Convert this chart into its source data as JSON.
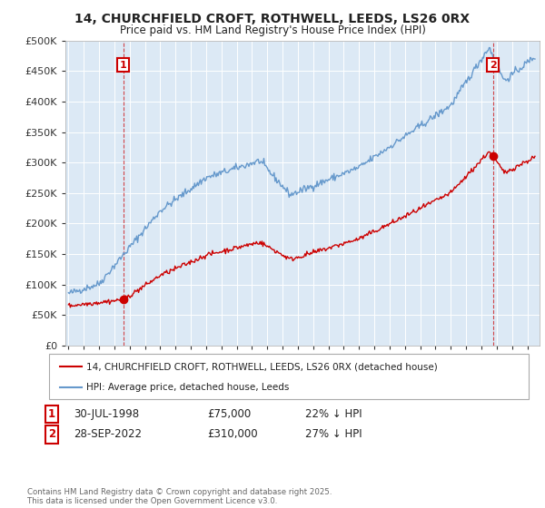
{
  "title_line1": "14, CHURCHFIELD CROFT, ROTHWELL, LEEDS, LS26 0RX",
  "title_line2": "Price paid vs. HM Land Registry's House Price Index (HPI)",
  "legend_label1": "14, CHURCHFIELD CROFT, ROTHWELL, LEEDS, LS26 0RX (detached house)",
  "legend_label2": "HPI: Average price, detached house, Leeds",
  "annotation1_label": "1",
  "annotation1_date": "30-JUL-1998",
  "annotation1_price": "£75,000",
  "annotation1_hpi": "22% ↓ HPI",
  "annotation2_label": "2",
  "annotation2_date": "28-SEP-2022",
  "annotation2_price": "£310,000",
  "annotation2_hpi": "27% ↓ HPI",
  "footnote": "Contains HM Land Registry data © Crown copyright and database right 2025.\nThis data is licensed under the Open Government Licence v3.0.",
  "sale1_year": 1998.58,
  "sale1_price": 75000,
  "sale2_year": 2022.75,
  "sale2_price": 310000,
  "red_color": "#cc0000",
  "blue_color": "#6699cc",
  "chart_bg_color": "#dce9f5",
  "background_color": "#ffffff",
  "grid_color": "#ffffff",
  "ylim_max": 500000,
  "ylim_min": 0,
  "xmin": 1994.8,
  "xmax": 2025.8
}
